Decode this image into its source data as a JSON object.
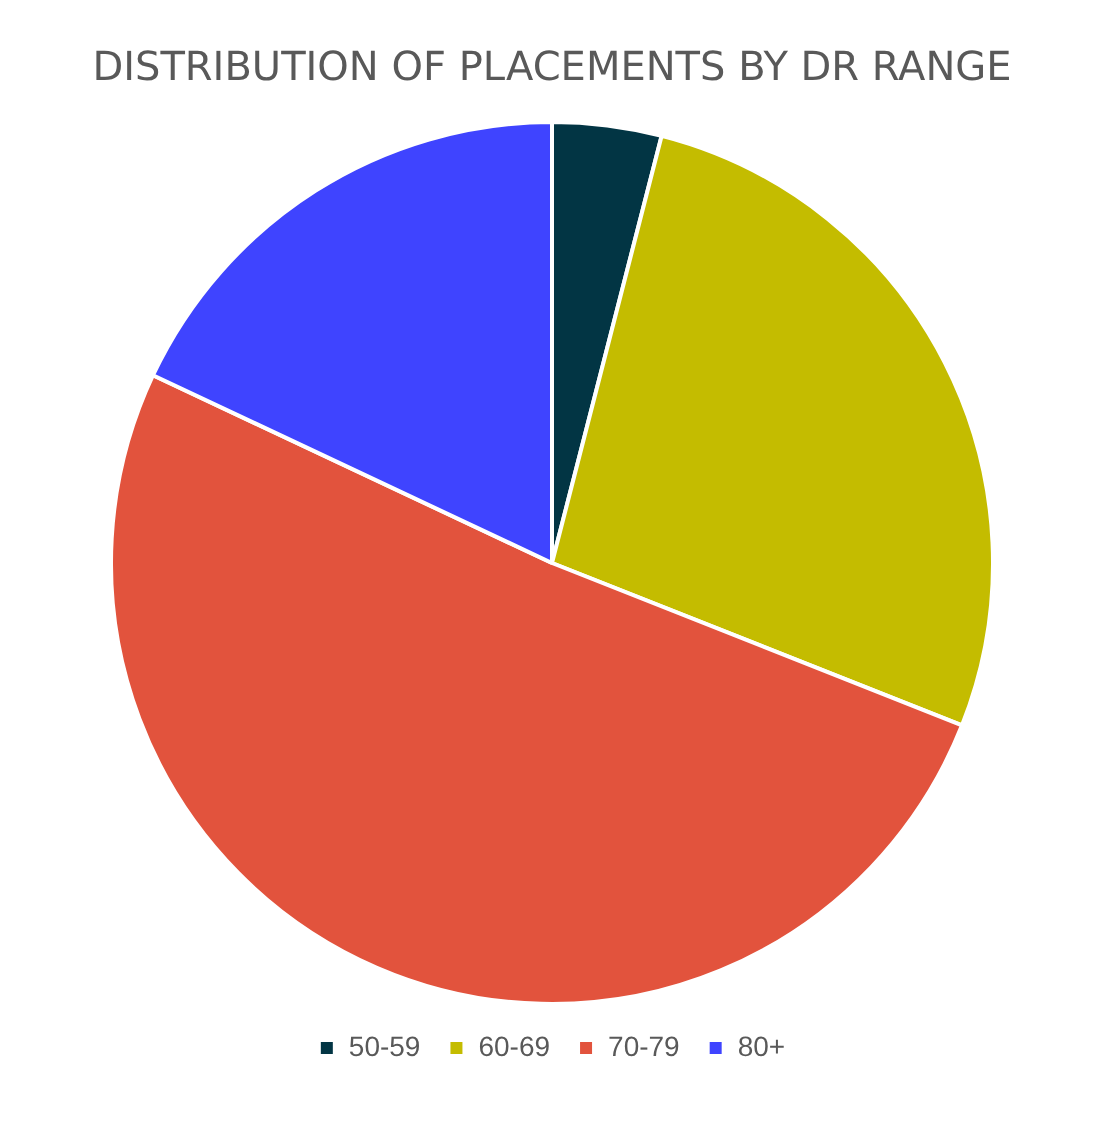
{
  "chart_data": {
    "type": "pie",
    "title": "DISTRIBUTION OF PLACEMENTS BY DR RANGE",
    "categories": [
      "50-59",
      "60-69",
      "70-79",
      "80+"
    ],
    "values": [
      4,
      27,
      51,
      18
    ],
    "colors": [
      "#023544",
      "#c4bc00",
      "#e2533d",
      "#3f44ff"
    ],
    "legend": "bottom"
  }
}
